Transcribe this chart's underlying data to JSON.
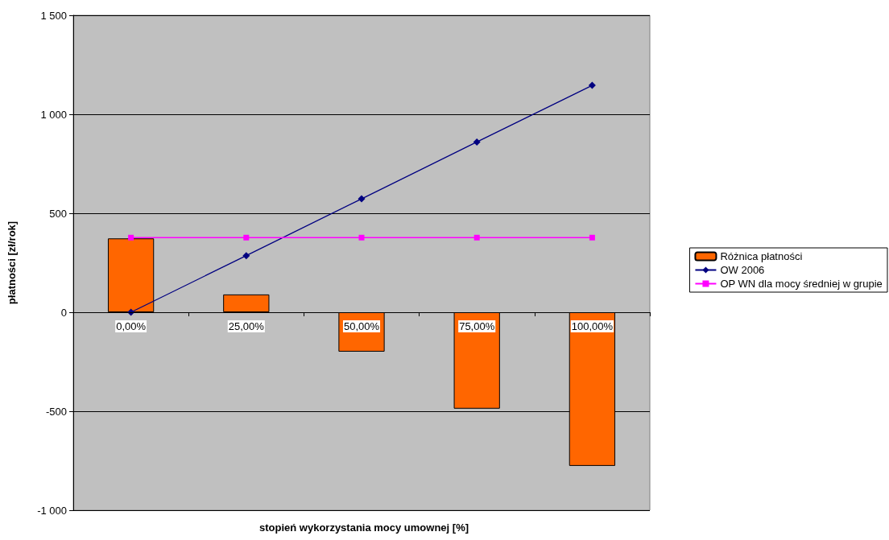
{
  "chart_data": {
    "type": "bar",
    "xlabel": "stopień wykorzystania mocy umownej [%]",
    "ylabel": "płatności [zł/rok]",
    "categories": [
      "0,00%",
      "25,00%",
      "50,00%",
      "75,00%",
      "100,00%"
    ],
    "series": [
      {
        "name": "Różnica płatności",
        "color": "#ff6600",
        "values": [
          373,
          90,
          -199,
          -487,
          -776
        ]
      },
      {
        "name": "OW 2006",
        "type": "line",
        "color": "#000080",
        "marker": "diamond",
        "values": [
          0,
          286,
          573,
          860,
          1146
        ]
      },
      {
        "name": "OP WN dla mocy średniej w grupie",
        "type": "line",
        "color": "#ff00ff",
        "marker": "square",
        "values": [
          377,
          377,
          377,
          377,
          377
        ]
      }
    ],
    "ylim": [
      -1000,
      1500
    ],
    "yticks": [
      {
        "value": -1000,
        "label": "-1 000"
      },
      -500,
      0,
      500,
      {
        "value": 1000,
        "label": "1 000"
      },
      {
        "value": 1500,
        "label": "1 500"
      }
    ],
    "grid": "y",
    "legend": "right"
  }
}
